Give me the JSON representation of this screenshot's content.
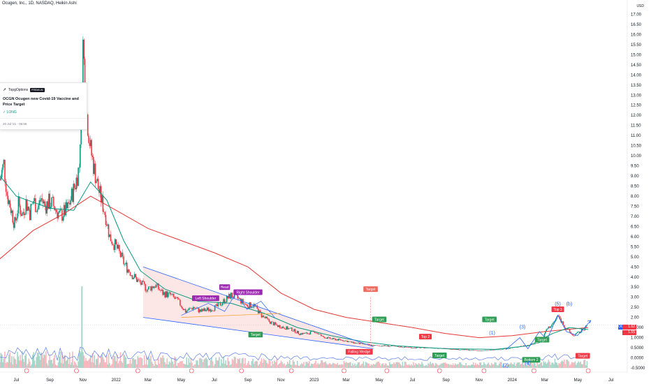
{
  "header": {
    "title": "Ocugen, Inc., 1D, NASDAQ, Heikin Ashi"
  },
  "idea_card": {
    "author": "TopgOptions",
    "badge": "PREMIUM",
    "headline": "OCGN Ocugen new Covid-19 Vaccine and Price Target",
    "position": "✓ LONG",
    "date": "20 Jul '21 · 06:55"
  },
  "price_labels": {
    "symbol_tag": "OCGN",
    "last_price": "1.62",
    "prev_price": "1.55"
  },
  "colors": {
    "up": "#089981",
    "down": "#f23645",
    "ma_fast": "#089981",
    "ma_slow": "#e53935",
    "pattern_line": "#2962ff",
    "volume_line": "#5b7fe8",
    "wedge_fill": "#fcdede",
    "label_red": "#f23645",
    "label_green": "#2e9e54",
    "label_purple": "#9c27b0",
    "label_salmon": "#ef6b5f"
  },
  "chart_data": {
    "type": "candlestick",
    "title": "Ocugen, Inc., 1D, NASDAQ, Heikin Ashi",
    "y_axis_unit": "USD",
    "ylim": [
      -0.5,
      17.5
    ],
    "y_ticks": [
      "17.00",
      "16.50",
      "16.00",
      "15.50",
      "15.00",
      "14.50",
      "14.00",
      "13.50",
      "13.00",
      "12.50",
      "12.00",
      "11.50",
      "11.00",
      "10.50",
      "10.00",
      "9.50",
      "9.00",
      "8.50",
      "8.00",
      "7.50",
      "7.00",
      "6.50",
      "6.00",
      "5.50",
      "5.00",
      "4.50",
      "4.00",
      "3.50",
      "3.00",
      "2.50",
      "2.00",
      "1.5000",
      "1.0000",
      "0.5000",
      "0.0000",
      "-0.5000"
    ],
    "x_ticks": [
      "Jul",
      "Sep",
      "Nov",
      "2022",
      "Mar",
      "May",
      "Jul",
      "Sep",
      "Nov",
      "2023",
      "Mar",
      "May",
      "Jul",
      "Sep",
      "Nov",
      "2024",
      "Mar",
      "May",
      "Jul"
    ],
    "x_range": [
      "2021-06-01",
      "2024-07-31"
    ],
    "close_path": [
      [
        "2021-06-01",
        8.8
      ],
      [
        "2021-06-08",
        9.6
      ],
      [
        "2021-06-14",
        8.1
      ],
      [
        "2021-06-21",
        7.4
      ],
      [
        "2021-06-28",
        6.6
      ],
      [
        "2021-07-05",
        7.6
      ],
      [
        "2021-07-12",
        7.1
      ],
      [
        "2021-07-19",
        7.7
      ],
      [
        "2021-07-26",
        7.2
      ],
      [
        "2021-08-02",
        7.8
      ],
      [
        "2021-08-09",
        7.4
      ],
      [
        "2021-08-16",
        7.9
      ],
      [
        "2021-08-23",
        7.5
      ],
      [
        "2021-08-30",
        7.7
      ],
      [
        "2021-09-06",
        7.6
      ],
      [
        "2021-09-13",
        7.3
      ],
      [
        "2021-09-20",
        7.0
      ],
      [
        "2021-09-27",
        7.2
      ],
      [
        "2021-10-04",
        7.4
      ],
      [
        "2021-10-11",
        8.0
      ],
      [
        "2021-10-18",
        8.6
      ],
      [
        "2021-10-25",
        9.5
      ],
      [
        "2021-11-01",
        15.5
      ],
      [
        "2021-11-08",
        12.0
      ],
      [
        "2021-11-15",
        10.3
      ],
      [
        "2021-11-22",
        9.3
      ],
      [
        "2021-11-29",
        8.4
      ],
      [
        "2021-12-06",
        7.7
      ],
      [
        "2021-12-13",
        7.0
      ],
      [
        "2021-12-20",
        6.0
      ],
      [
        "2022-01-03",
        5.4
      ],
      [
        "2022-01-17",
        4.6
      ],
      [
        "2022-01-31",
        4.1
      ],
      [
        "2022-02-14",
        3.7
      ],
      [
        "2022-02-28",
        3.4
      ],
      [
        "2022-03-14",
        3.6
      ],
      [
        "2022-03-28",
        3.2
      ],
      [
        "2022-04-11",
        3.1
      ],
      [
        "2022-04-25",
        2.8
      ],
      [
        "2022-05-09",
        2.3
      ],
      [
        "2022-05-23",
        2.5
      ],
      [
        "2022-06-06",
        2.3
      ],
      [
        "2022-06-20",
        2.4
      ],
      [
        "2022-07-04",
        2.5
      ],
      [
        "2022-07-18",
        2.8
      ],
      [
        "2022-08-01",
        3.1
      ],
      [
        "2022-08-15",
        2.9
      ],
      [
        "2022-08-29",
        2.6
      ],
      [
        "2022-09-12",
        2.6
      ],
      [
        "2022-09-26",
        2.1
      ],
      [
        "2022-10-10",
        1.8
      ],
      [
        "2022-10-24",
        1.6
      ],
      [
        "2022-11-07",
        1.5
      ],
      [
        "2022-11-21",
        1.4
      ],
      [
        "2022-12-05",
        1.2
      ],
      [
        "2022-12-19",
        1.2
      ],
      [
        "2023-01-02",
        1.3
      ],
      [
        "2023-01-16",
        1.05
      ],
      [
        "2023-01-30",
        0.95
      ],
      [
        "2023-02-13",
        0.9
      ],
      [
        "2023-02-27",
        0.85
      ],
      [
        "2023-03-13",
        0.75
      ],
      [
        "2023-03-27",
        0.7
      ],
      [
        "2023-04-10",
        0.65
      ],
      [
        "2023-04-24",
        0.6
      ],
      [
        "2023-05-08",
        0.6
      ],
      [
        "2023-06-05",
        0.55
      ],
      [
        "2023-07-03",
        0.5
      ],
      [
        "2023-08-07",
        0.5
      ],
      [
        "2023-09-04",
        0.45
      ],
      [
        "2023-10-02",
        0.4
      ],
      [
        "2023-11-06",
        0.35
      ],
      [
        "2023-12-04",
        0.4
      ],
      [
        "2024-01-01",
        0.5
      ],
      [
        "2024-01-22",
        0.6
      ],
      [
        "2024-02-12",
        0.7
      ],
      [
        "2024-02-26",
        0.9
      ],
      [
        "2024-03-04",
        1.4
      ],
      [
        "2024-03-18",
        1.75
      ],
      [
        "2024-03-25",
        2.1
      ],
      [
        "2024-04-08",
        1.5
      ],
      [
        "2024-04-22",
        1.1
      ],
      [
        "2024-05-06",
        1.3
      ],
      [
        "2024-05-20",
        1.62
      ]
    ],
    "series": [
      {
        "name": "",
        "role": "fast moving average",
        "points": [
          [
            "2021-06-01",
            9.0
          ],
          [
            "2021-07-01",
            8.0
          ],
          [
            "2021-09-01",
            7.4
          ],
          [
            "2021-10-15",
            7.3
          ],
          [
            "2021-11-15",
            8.7
          ],
          [
            "2021-12-15",
            7.8
          ],
          [
            "2022-01-15",
            5.8
          ],
          [
            "2022-02-15",
            4.3
          ],
          [
            "2022-04-01",
            3.4
          ],
          [
            "2022-06-01",
            2.8
          ],
          [
            "2022-08-01",
            2.7
          ],
          [
            "2022-10-01",
            2.2
          ],
          [
            "2022-12-01",
            1.5
          ],
          [
            "2023-02-01",
            1.1
          ],
          [
            "2023-04-01",
            0.8
          ],
          [
            "2023-06-01",
            0.6
          ],
          [
            "2023-09-01",
            0.45
          ],
          [
            "2023-12-01",
            0.42
          ],
          [
            "2024-02-01",
            0.6
          ],
          [
            "2024-03-15",
            1.2
          ],
          [
            "2024-04-15",
            1.5
          ],
          [
            "2024-05-20",
            1.4
          ]
        ]
      },
      {
        "name": "",
        "role": "slow moving average",
        "points": [
          [
            "2021-06-01",
            4.9
          ],
          [
            "2021-08-01",
            6.3
          ],
          [
            "2021-10-01",
            7.2
          ],
          [
            "2021-11-15",
            8.0
          ],
          [
            "2022-01-01",
            7.3
          ],
          [
            "2022-03-01",
            6.4
          ],
          [
            "2022-05-01",
            5.8
          ],
          [
            "2022-07-01",
            5.2
          ],
          [
            "2022-09-01",
            4.5
          ],
          [
            "2022-11-01",
            3.2
          ],
          [
            "2023-01-01",
            2.4
          ],
          [
            "2023-03-01",
            2.0
          ],
          [
            "2023-05-01",
            1.75
          ],
          [
            "2023-07-01",
            1.5
          ],
          [
            "2023-09-01",
            1.2
          ],
          [
            "2023-11-01",
            1.0
          ],
          [
            "2024-01-01",
            1.1
          ],
          [
            "2024-03-01",
            1.3
          ],
          [
            "2024-05-20",
            1.5
          ]
        ]
      }
    ],
    "annotations": [
      "Falling Wedge",
      "Left Shoulder",
      "Head",
      "Right Shoulder",
      "Target",
      "Target",
      "Target",
      "Target",
      "Target",
      "Target",
      "Target",
      "Top 2",
      "Top 3",
      "Bottom 2",
      "(1)",
      "(2)",
      "(3)",
      "(4)",
      "(5)",
      "(b)"
    ]
  }
}
